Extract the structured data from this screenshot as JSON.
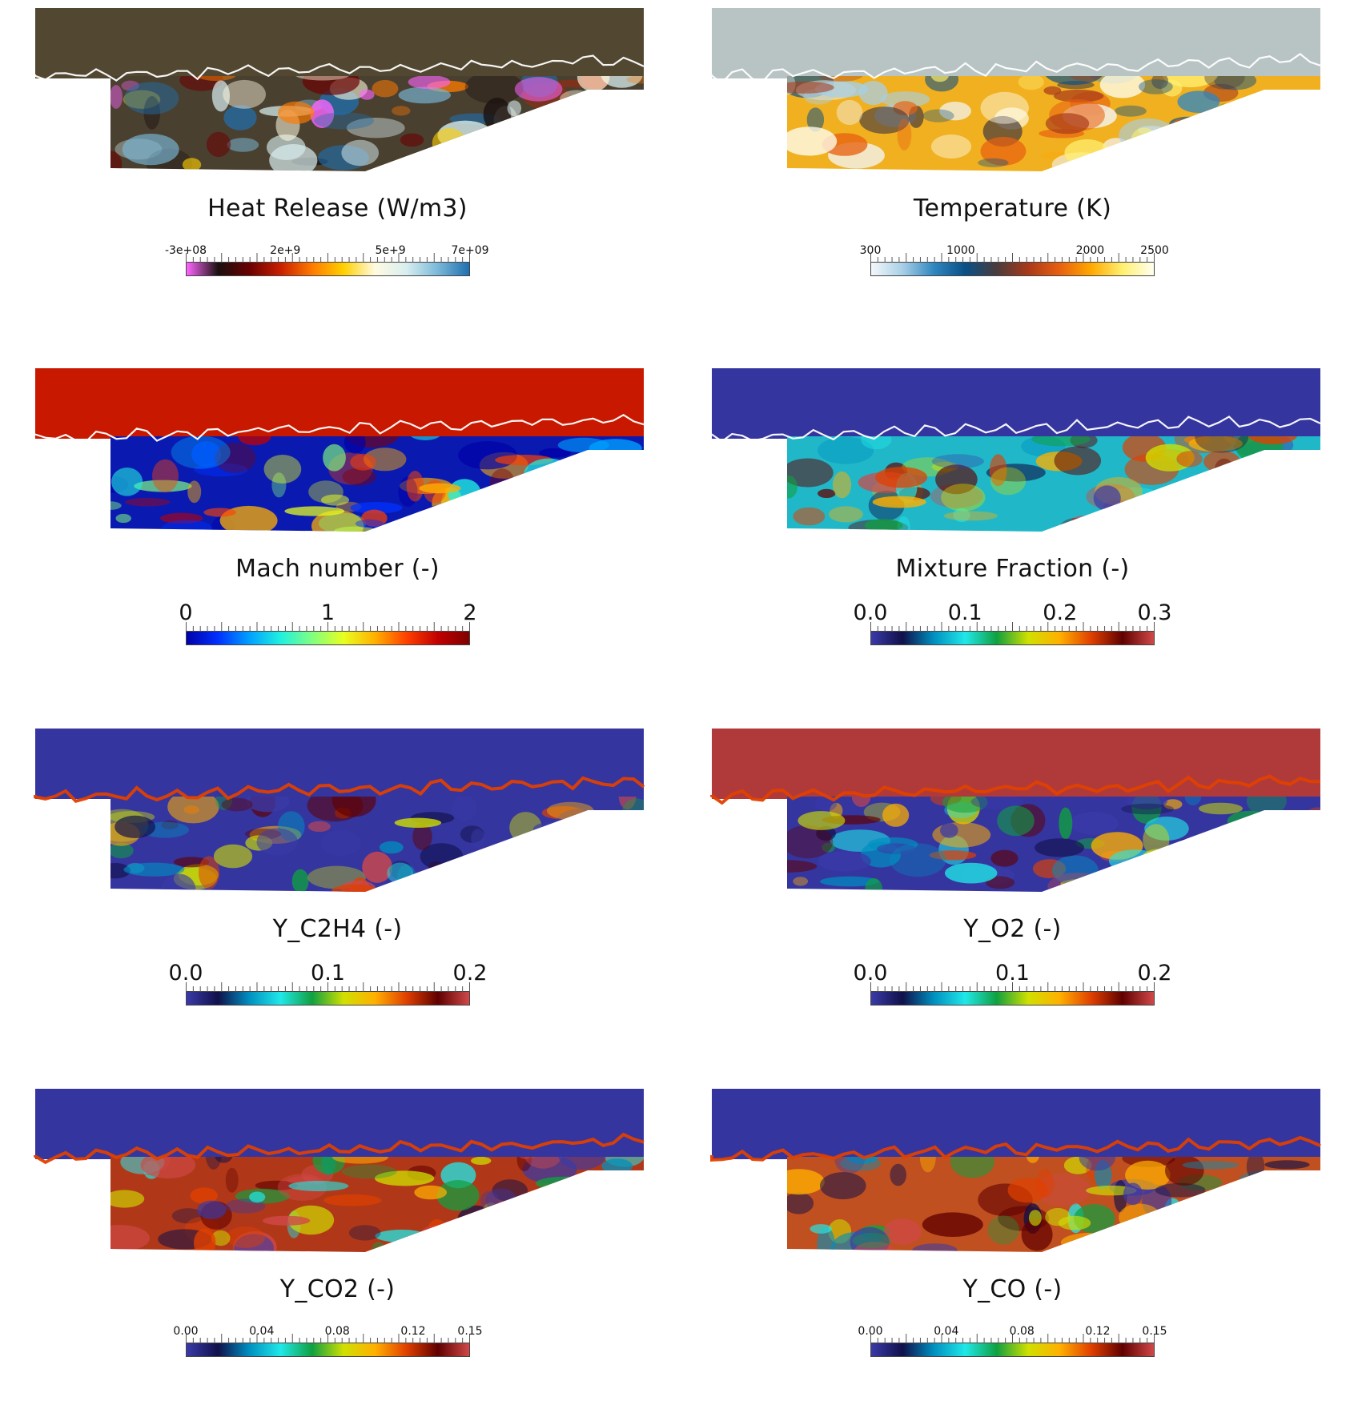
{
  "panels": [
    {
      "id": "heat-release",
      "title": "Heat Release (W/m3)",
      "ticks": [
        "-3e+08",
        "2e+9",
        "5e+9",
        "7e+09"
      ],
      "tick_pos": [
        0.0,
        0.35,
        0.72,
        1.0
      ],
      "colormap": [
        "#ff66ff",
        "#1a1010",
        "#6a0000",
        "#c82000",
        "#ff7a00",
        "#ffd000",
        "#fffbe0",
        "#d8eef0",
        "#7ab8d8",
        "#1f6fb0"
      ],
      "upper_color": "#524832",
      "cavity_color": "#4a4030",
      "has_contour": true,
      "tick_size": "small"
    },
    {
      "id": "temperature",
      "title": "Temperature (K)",
      "ticks": [
        "300",
        "1000",
        "2000",
        "2500"
      ],
      "tick_pos": [
        0.0,
        0.318,
        0.773,
        1.0
      ],
      "colormap": [
        "#f4f8fb",
        "#a8cfe6",
        "#2f86c0",
        "#0a4f86",
        "#4a3c3c",
        "#a83a1a",
        "#e86010",
        "#ffa800",
        "#fff070",
        "#fffff0"
      ],
      "upper_color": "#b8c4c4",
      "cavity_color": "#f0b020",
      "has_contour": true,
      "tick_size": "small"
    },
    {
      "id": "mach-number",
      "title": "Mach number (-)",
      "ticks": [
        "0",
        "1",
        "2"
      ],
      "tick_pos": [
        0.0,
        0.5,
        1.0
      ],
      "colormap": [
        "#0000a8",
        "#0030ff",
        "#00a0ff",
        "#20f0e0",
        "#80ff80",
        "#e8ff20",
        "#ffb000",
        "#ff4000",
        "#c00000",
        "#800000"
      ],
      "upper_color": "#c81800",
      "cavity_color": "#0a1ab0",
      "has_contour": true,
      "tick_size": "large"
    },
    {
      "id": "mixture-fraction",
      "title": "Mixture Fraction (-)",
      "ticks": [
        "0.0",
        "0.1",
        "0.2",
        "0.3"
      ],
      "tick_pos": [
        0.0,
        0.333,
        0.667,
        1.0
      ],
      "colormap": [
        "#3a3aa8",
        "#10104a",
        "#0090c0",
        "#20e8e8",
        "#10a040",
        "#d0e000",
        "#ffb000",
        "#e04000",
        "#600000",
        "#d04848"
      ],
      "upper_color": "#3535a0",
      "cavity_color": "#20b8c8",
      "has_contour": true,
      "tick_size": "large"
    },
    {
      "id": "y-c2h4",
      "title": "Y_C2H4 (-)",
      "ticks": [
        "0.0",
        "0.1",
        "0.2"
      ],
      "tick_pos": [
        0.0,
        0.5,
        1.0
      ],
      "colormap": [
        "#3a3aa8",
        "#10104a",
        "#0090c0",
        "#20e8e8",
        "#10a040",
        "#d0e000",
        "#ffb000",
        "#e04000",
        "#600000",
        "#d04848"
      ],
      "upper_color": "#3535a0",
      "cavity_color": "#3535a0",
      "has_contour": false,
      "tick_size": "large"
    },
    {
      "id": "y-o2",
      "title": "Y_O2 (-)",
      "ticks": [
        "0.0",
        "0.1",
        "0.2"
      ],
      "tick_pos": [
        0.0,
        0.5,
        1.0
      ],
      "colormap": [
        "#3a3aa8",
        "#10104a",
        "#0090c0",
        "#20e8e8",
        "#10a040",
        "#d0e000",
        "#ffb000",
        "#e04000",
        "#600000",
        "#d04848"
      ],
      "upper_color": "#b03a3a",
      "cavity_color": "#3535a0",
      "has_contour": false,
      "tick_size": "large"
    },
    {
      "id": "y-co2",
      "title": "Y_CO2 (-)",
      "ticks": [
        "0.00",
        "0.04",
        "0.08",
        "0.12",
        "0.15"
      ],
      "tick_pos": [
        0.0,
        0.267,
        0.533,
        0.8,
        1.0
      ],
      "colormap": [
        "#3a3aa8",
        "#10104a",
        "#0090c0",
        "#20e8e8",
        "#10a040",
        "#d0e000",
        "#ffb000",
        "#e04000",
        "#600000",
        "#d04848"
      ],
      "upper_color": "#3535a0",
      "cavity_color": "#b03818",
      "has_contour": false,
      "tick_size": "small"
    },
    {
      "id": "y-co",
      "title": "Y_CO (-)",
      "ticks": [
        "0.00",
        "0.04",
        "0.08",
        "0.12",
        "0.15"
      ],
      "tick_pos": [
        0.0,
        0.267,
        0.533,
        0.8,
        1.0
      ],
      "colormap": [
        "#3a3aa8",
        "#10104a",
        "#0090c0",
        "#20e8e8",
        "#10a040",
        "#d0e000",
        "#ffb000",
        "#e04000",
        "#600000",
        "#d04848"
      ],
      "upper_color": "#3535a0",
      "cavity_color": "#c05020",
      "has_contour": false,
      "tick_size": "small"
    }
  ]
}
